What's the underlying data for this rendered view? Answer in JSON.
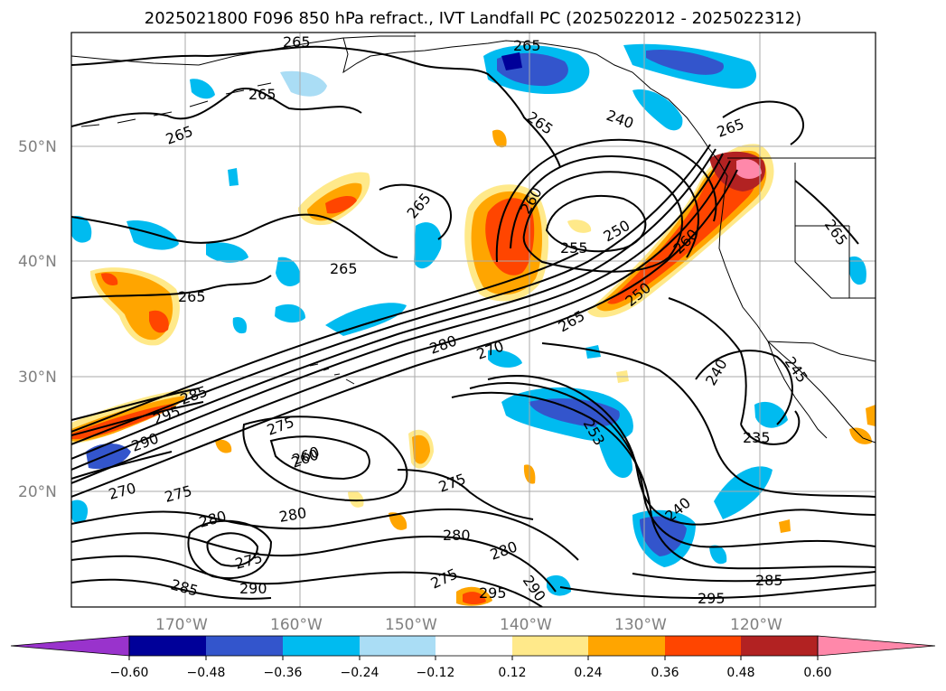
{
  "title": "2025021800 F096 850 hPa refract., IVT Landfall PC (2025022012 - 2025022312)",
  "lat_labels": [
    "50°N",
    "40°N",
    "30°N",
    "20°N"
  ],
  "lon_labels": [
    "170°W",
    "160°W",
    "150°W",
    "140°W",
    "130°W",
    "120°W"
  ],
  "contour_labels": [
    "265",
    "265",
    "265",
    "265",
    "265",
    "265",
    "265",
    "265",
    "265",
    "265",
    "260",
    "260",
    "250",
    "255",
    "240",
    "250",
    "265",
    "270",
    "280",
    "285",
    "295",
    "290",
    "275",
    "260",
    "270",
    "275",
    "280",
    "280",
    "280",
    "275",
    "275",
    "280",
    "290",
    "285",
    "295",
    "290",
    "295",
    "285",
    "240",
    "245",
    "235",
    "240",
    "260",
    "253",
    "275"
  ],
  "colorbar": {
    "ticks": [
      "−0.60",
      "−0.48",
      "−0.36",
      "−0.24",
      "−0.12",
      "0.12",
      "0.24",
      "0.36",
      "0.48",
      "0.60"
    ],
    "colors": [
      "#9933cc",
      "#000099",
      "#3355cc",
      "#00bbf0",
      "#aaddf5",
      "#ffffff",
      "#ffe98a",
      "#ffa500",
      "#ff4500",
      "#b22222",
      "#ff88aa"
    ]
  },
  "colors": {
    "contour": "#000000",
    "coastline": "#000000",
    "grid": "#aaaaaa"
  }
}
